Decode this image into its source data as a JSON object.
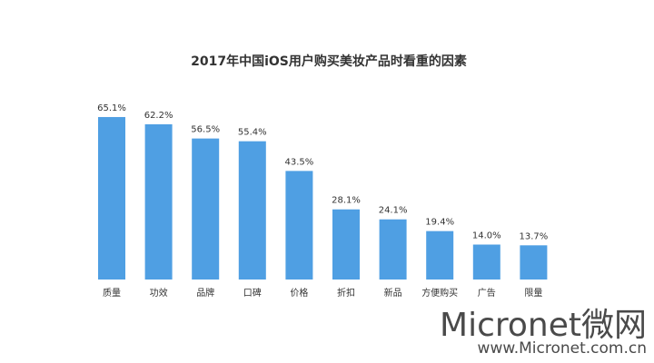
{
  "chart_data": {
    "type": "bar",
    "title": "2017年中国iOS用户购买美妆产品时看重的因素",
    "categories": [
      "质量",
      "功效",
      "品牌",
      "口碑",
      "价格",
      "折扣",
      "新品",
      "方便购买",
      "广告",
      "限量"
    ],
    "values": [
      65.1,
      62.2,
      56.5,
      55.4,
      43.5,
      28.1,
      24.1,
      19.4,
      14.0,
      13.7
    ],
    "value_labels": [
      "65.1%",
      "62.2%",
      "56.5%",
      "55.4%",
      "43.5%",
      "28.1%",
      "24.1%",
      "19.4%",
      "14.0%",
      "13.7%"
    ],
    "color": "#4f9fe3",
    "watermark": [
      "Micronet微网",
      "www.Micronet.com.cn"
    ]
  }
}
